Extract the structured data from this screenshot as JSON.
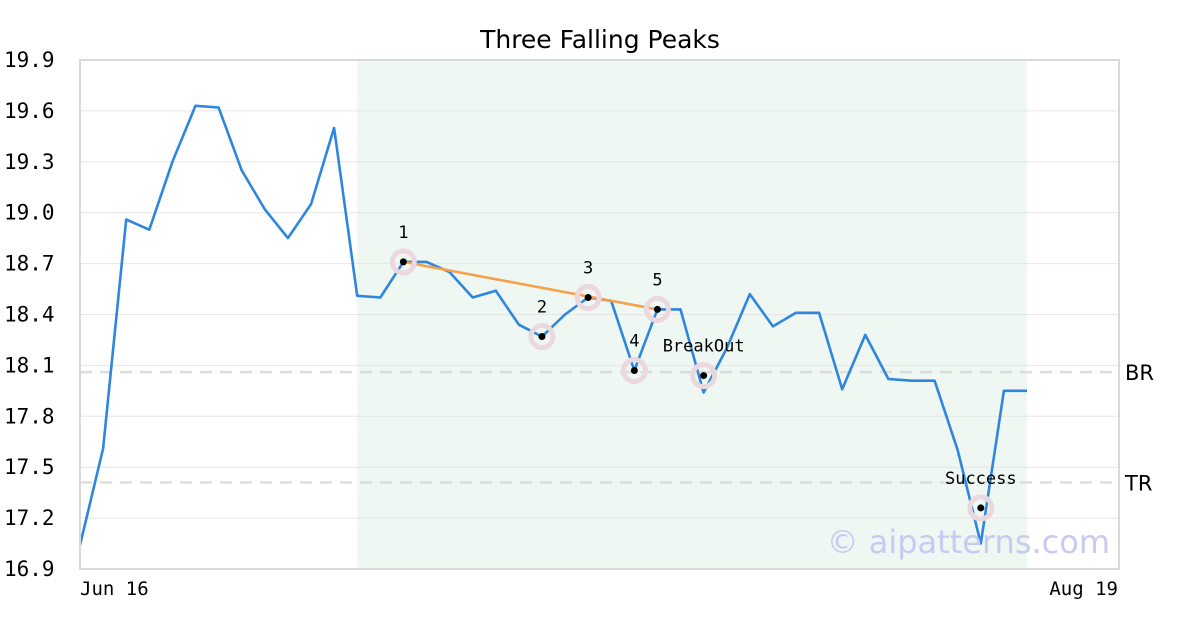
{
  "chart_data": {
    "type": "line",
    "title": "Three Falling Peaks",
    "xlabel": "",
    "ylabel": "",
    "ylim": [
      16.9,
      19.9
    ],
    "yticks": [
      "19.9",
      "19.6",
      "19.3",
      "19.0",
      "18.7",
      "18.4",
      "18.1",
      "17.8",
      "17.5",
      "17.2",
      "16.9"
    ],
    "xticks": [
      "Jun 16",
      "Aug 19"
    ],
    "grid": true,
    "x_index_range": [
      0,
      41
    ],
    "highlight_range": [
      12,
      41
    ],
    "colors": {
      "line": "#2e86de",
      "trendline": "#f5a04a",
      "highlight": "#eff7f3",
      "reference": "#dddddd",
      "marker_ring": "#ead8de"
    },
    "series": [
      {
        "values": [
          17.04,
          17.61,
          18.96,
          18.9,
          19.3,
          19.63,
          19.62,
          19.25,
          19.02,
          18.85,
          19.05,
          19.5,
          18.51,
          18.5,
          18.71,
          18.71,
          18.65,
          18.5,
          18.54,
          18.34,
          18.27,
          18.4,
          18.5,
          18.48,
          18.07,
          18.43,
          18.43,
          17.94,
          18.2,
          18.52,
          18.33,
          18.41,
          18.41,
          17.96,
          18.28,
          18.02,
          18.01,
          18.01,
          17.6,
          17.05,
          17.95,
          17.95
        ]
      }
    ],
    "trendline": {
      "from": [
        14,
        18.71
      ],
      "to": [
        25,
        18.43
      ]
    },
    "reference_lines": [
      {
        "label": "BR",
        "y": 18.06
      },
      {
        "label": "TR",
        "y": 17.41
      }
    ],
    "annotations": [
      {
        "label": "1",
        "x": 14,
        "y": 18.71,
        "label_pos": "above"
      },
      {
        "label": "2",
        "x": 20,
        "y": 18.27,
        "label_pos": "above"
      },
      {
        "label": "3",
        "x": 22,
        "y": 18.5,
        "label_pos": "above"
      },
      {
        "label": "4",
        "x": 24,
        "y": 18.07,
        "label_pos": "above"
      },
      {
        "label": "5",
        "x": 25,
        "y": 18.43,
        "label_pos": "above"
      },
      {
        "label": "BreakOut",
        "x": 27,
        "y": 18.04,
        "label_pos": "above"
      },
      {
        "label": "Success",
        "x": 39,
        "y": 17.26,
        "label_pos": "above"
      }
    ],
    "watermark": "© aipatterns.com"
  }
}
